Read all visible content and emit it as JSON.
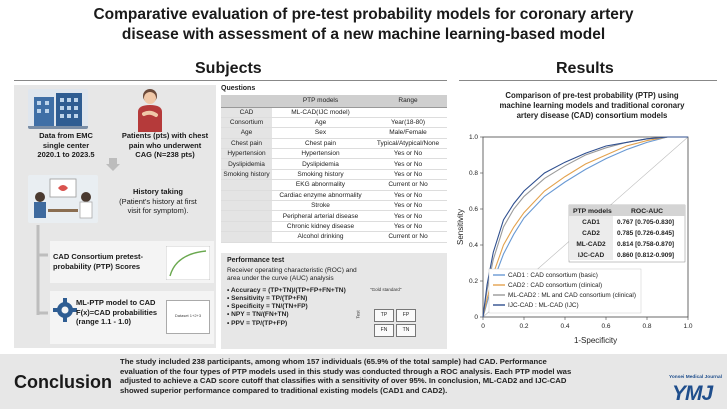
{
  "title_line1": "Comparative evaluation of pre-test probability models for coronary artery",
  "title_line2": "disease with assessment of a new machine learning-based model",
  "subjects": {
    "heading": "Subjects",
    "data_from_l1": "Data from EMC",
    "data_from_l2": "single center",
    "data_from_l3": "2020.1 to 2023.5",
    "patients_l1": "Patients (pts) with chest",
    "patients_l2": "pain who underwent",
    "patients_l3": "CAG (N=238 pts)",
    "history_l1": "History taking",
    "history_l2": "(Patient's history at first",
    "history_l3": "visit for symptom).",
    "consortium_l1": "CAD Consortium pretest-",
    "consortium_l2": "probability (PTP) Scores",
    "mlptp_l1": "ML-PTP model to CAD",
    "mlptp_l2": "F(x)=CAD probabilities",
    "mlptp_l3": "(range 1.1 - 1.0)",
    "mini_label": "Dataset 1+2+3"
  },
  "questions": {
    "heading": "Questions",
    "col_ptp": "PTP models",
    "col_range": "Range",
    "rows": [
      [
        "CAD",
        "ML-CAD(IJC model)",
        ""
      ],
      [
        "Consortium",
        "Age",
        "Year(18-80)"
      ],
      [
        "Age",
        "Sex",
        "Male/Female"
      ],
      [
        "Chest pain",
        "Chest pain",
        "Typical/Atypical/None"
      ],
      [
        "Hypertension",
        "Hypertension",
        "Yes or No"
      ],
      [
        "Dyslipidemia",
        "Dyslipidemia",
        "Yes or No"
      ],
      [
        "Smoking history",
        "Smoking history",
        "Yes or No"
      ],
      [
        "",
        "EKG abnormality",
        "Current or No"
      ],
      [
        "",
        "Cardiac enzyme abnormality",
        "Yes or No"
      ],
      [
        "",
        "Stroke",
        "Yes or No"
      ],
      [
        "",
        "Peripheral arterial disease",
        "Yes or No"
      ],
      [
        "",
        "Chronic kidney disease",
        "Yes or No"
      ],
      [
        "",
        "Alcohol drinking",
        "Current or No"
      ]
    ]
  },
  "performance": {
    "heading": "Performance test",
    "desc_l1": "Receiver operating characteristic (ROC) and",
    "desc_l2": "area under the curve (AUC) analysis",
    "f1": "• Accuracy = (TP+TN)/(TP+FP+FN+TN)",
    "f2": "• Sensitivity = TP/(TP+FN)",
    "f3": "• Specificity = TN/(TN+FP)",
    "f4": "• NPY = TN/(FN+TN)",
    "f5": "• PPV = TP/(TP+FP)",
    "gold": "\"Gold standard\"",
    "test": "Test",
    "tp": "TP",
    "fp": "FP",
    "fn": "FN",
    "tn": "TN"
  },
  "results": {
    "heading": "Results",
    "title_l1": "Comparison of pre-test probability (PTP) using",
    "title_l2": "machine learning models and traditional coronary",
    "title_l3": "artery disease (CAD) consortium models"
  },
  "chart_data": {
    "type": "line",
    "title": "Comparison of pre-test probability (PTP) using machine learning models and traditional coronary artery disease (CAD) consortium models",
    "xlabel": "1-Specificity",
    "ylabel": "Sensitivity",
    "xlim": [
      0,
      1.0
    ],
    "ylim": [
      0,
      1.0
    ],
    "xticks": [
      "0",
      "0.2",
      "0.4",
      "0.6",
      "0.8",
      "1.0"
    ],
    "yticks": [
      "0",
      "0.2",
      "0.4",
      "0.6",
      "0.8",
      "1.0"
    ],
    "series": [
      {
        "name": "CAD1",
        "legend": "CAD1    : CAD consortium (basic)",
        "color": "#6a9ad4",
        "x": [
          0,
          0.02,
          0.05,
          0.1,
          0.15,
          0.2,
          0.3,
          0.4,
          0.5,
          0.6,
          0.7,
          0.8,
          0.9,
          1.0
        ],
        "y": [
          0,
          0.08,
          0.2,
          0.35,
          0.46,
          0.55,
          0.67,
          0.75,
          0.82,
          0.88,
          0.93,
          0.97,
          1.0,
          1.0
        ]
      },
      {
        "name": "CAD2",
        "legend": "CAD2    : CAD consortium (clinical)",
        "color": "#e3a24e",
        "x": [
          0,
          0.02,
          0.05,
          0.1,
          0.15,
          0.2,
          0.3,
          0.4,
          0.5,
          0.6,
          0.7,
          0.8,
          0.9,
          1.0
        ],
        "y": [
          0,
          0.1,
          0.24,
          0.4,
          0.5,
          0.58,
          0.7,
          0.78,
          0.85,
          0.9,
          0.95,
          0.98,
          1.0,
          1.0
        ]
      },
      {
        "name": "ML-CAD2",
        "legend": "ML-CAD2 : ML and CAD consortium (clinical)",
        "color": "#9a9a9a",
        "x": [
          0,
          0.02,
          0.05,
          0.1,
          0.15,
          0.2,
          0.3,
          0.4,
          0.5,
          0.6,
          0.7,
          0.8,
          0.9,
          1.0
        ],
        "y": [
          0,
          0.15,
          0.32,
          0.5,
          0.6,
          0.67,
          0.77,
          0.84,
          0.9,
          0.94,
          0.97,
          0.99,
          1.0,
          1.0
        ]
      },
      {
        "name": "IJC-CAD",
        "legend": "IJC-CAD : ML-CAD (IJC)",
        "color": "#2f4f8f",
        "x": [
          0,
          0.02,
          0.05,
          0.1,
          0.15,
          0.2,
          0.3,
          0.4,
          0.5,
          0.6,
          0.7,
          0.8,
          0.9,
          1.0
        ],
        "y": [
          0,
          0.18,
          0.36,
          0.54,
          0.63,
          0.7,
          0.8,
          0.86,
          0.91,
          0.95,
          0.97,
          0.99,
          1.0,
          1.0
        ]
      }
    ],
    "auc_table": {
      "col1": "PTP models",
      "col2": "ROC-AUC",
      "rows": [
        [
          "CAD1",
          "0.767 [0.705-0.830]"
        ],
        [
          "CAD2",
          "0.785 [0.726-0.845]"
        ],
        [
          "ML-CAD2",
          "0.814 [0.758-0.870]"
        ],
        [
          "IJC-CAD",
          "0.860 [0.812-0.909]"
        ]
      ]
    }
  },
  "conclusion": {
    "heading": "Conclusion",
    "l1": "The study included 238 participants, among whom 157 individuals (65.9% of the total sample) had CAD.  Performance",
    "l2": "evaluation of the four types of PTP models used in this study was conducted through a ROC analysis. Each PTP model was",
    "l3": "adjusted to achieve a CAD score cutoff that classifies with a sensitivity of over 95%. In conclusion, ML-CAD2 and IJC-CAD",
    "l4": "showed superior performance compared to traditional existing models (CAD1 and CAD2)."
  },
  "brand": {
    "small": "Yonsei Medical Journal",
    "big": "YMJ"
  }
}
